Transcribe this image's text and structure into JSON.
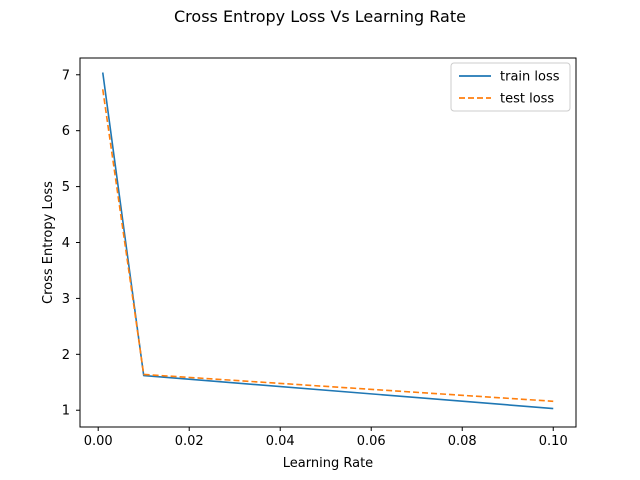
{
  "chart_data": {
    "type": "line",
    "title": "Cross Entropy Loss Vs Learning Rate",
    "xlabel": "Learning Rate",
    "ylabel": "Cross Entropy Loss",
    "xlim": [
      -0.004,
      0.105
    ],
    "ylim": [
      0.7,
      7.3
    ],
    "xticks": [
      0.0,
      0.02,
      0.04,
      0.06,
      0.08,
      0.1
    ],
    "xtick_labels": [
      "0.00",
      "0.02",
      "0.04",
      "0.06",
      "0.08",
      "0.10"
    ],
    "yticks": [
      1,
      2,
      3,
      4,
      5,
      6,
      7
    ],
    "ytick_labels": [
      "1",
      "2",
      "3",
      "4",
      "5",
      "6",
      "7"
    ],
    "grid": false,
    "legend_position": "top-right",
    "series": [
      {
        "name": "train loss",
        "color": "#1f77b4",
        "dash": "solid",
        "x": [
          0.001,
          0.01,
          0.1
        ],
        "y": [
          7.04,
          1.62,
          1.03
        ]
      },
      {
        "name": "test loss",
        "color": "#ff7f0e",
        "dash": "dashed",
        "x": [
          0.001,
          0.01,
          0.1
        ],
        "y": [
          6.74,
          1.64,
          1.16
        ]
      }
    ]
  }
}
